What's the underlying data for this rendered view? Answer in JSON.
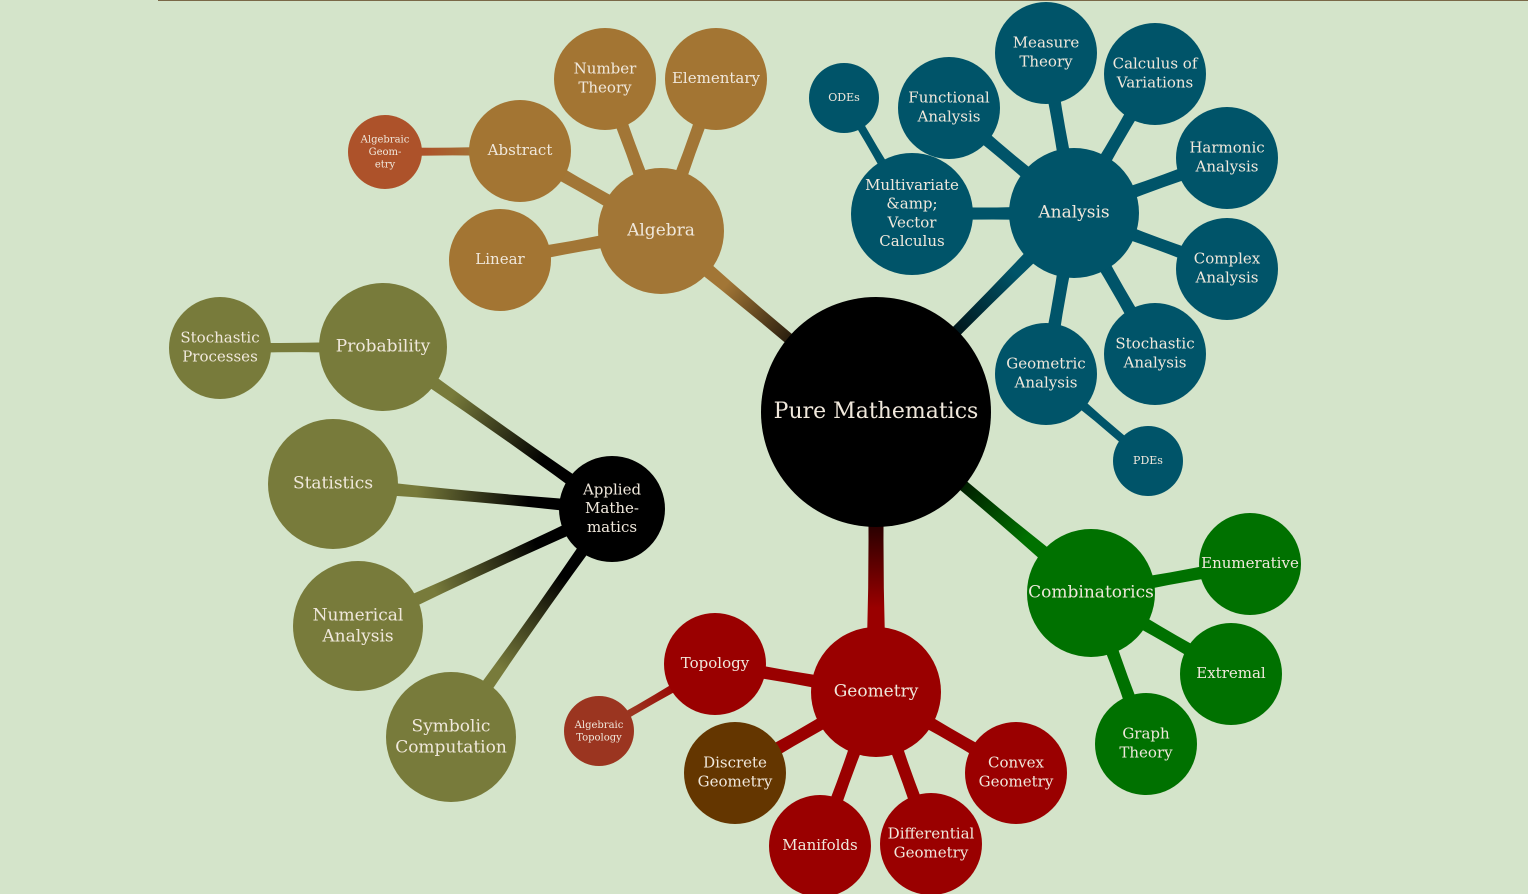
{
  "colors": {
    "background": "#d4e4ca",
    "root": "#000000",
    "algebra": "#a27636",
    "algebra_leaf": "#a37533",
    "algebraic_geometry": "#ad522a",
    "analysis": "#005469",
    "combinatorics": "#007100",
    "geometry": "#9a0000",
    "algebraic_topology": "#9b3520",
    "discrete_geometry": "#643600",
    "applied": "#000000",
    "applied_leaf": "#787b3b",
    "label": "#f0e8dc"
  },
  "root": {
    "label": "Pure Mathematics"
  },
  "branches": {
    "algebra": {
      "label": "Algebra",
      "children": {
        "abstract": {
          "label": "Abstract",
          "children": {
            "algebraic_geometry": {
              "label": "Algebraic Geom- etry"
            }
          }
        },
        "number_theory": {
          "label": "Number Theory"
        },
        "elementary": {
          "label": "Elementary"
        },
        "linear": {
          "label": "Linear"
        }
      }
    },
    "analysis": {
      "label": "Analysis",
      "children": {
        "multivariate": {
          "label": "Multivariate &amp; Vector Calculus",
          "children": {
            "odes": {
              "label": "ODEs"
            }
          }
        },
        "functional": {
          "label": "Functional Analysis"
        },
        "measure": {
          "label": "Measure Theory"
        },
        "calculus_variations": {
          "label": "Calculus of Variations"
        },
        "harmonic": {
          "label": "Harmonic Analysis"
        },
        "complex": {
          "label": "Complex Analysis"
        },
        "stochastic": {
          "label": "Stochastic Analysis"
        },
        "geometric": {
          "label": "Geometric Analysis",
          "children": {
            "pdes": {
              "label": "PDEs"
            }
          }
        }
      }
    },
    "combinatorics": {
      "label": "Combinatorics",
      "children": {
        "enumerative": {
          "label": "Enumerative"
        },
        "extremal": {
          "label": "Extremal"
        },
        "graph_theory": {
          "label": "Graph Theory"
        }
      }
    },
    "geometry": {
      "label": "Geometry",
      "children": {
        "topology": {
          "label": "Topology",
          "children": {
            "algebraic_topology": {
              "label": "Algebraic Topology"
            }
          }
        },
        "discrete": {
          "label": "Discrete Geometry"
        },
        "manifolds": {
          "label": "Manifolds"
        },
        "differential": {
          "label": "Differential Geometry"
        },
        "convex": {
          "label": "Convex Geometry"
        }
      }
    },
    "applied": {
      "label": "Applied Mathe- matics",
      "children": {
        "probability": {
          "label": "Probability",
          "children": {
            "stochastic_processes": {
              "label": "Stochastic Processes"
            }
          }
        },
        "statistics": {
          "label": "Statistics"
        },
        "numerical": {
          "label": "Numerical Analysis"
        },
        "symbolic": {
          "label": "Symbolic Computation"
        }
      }
    }
  }
}
